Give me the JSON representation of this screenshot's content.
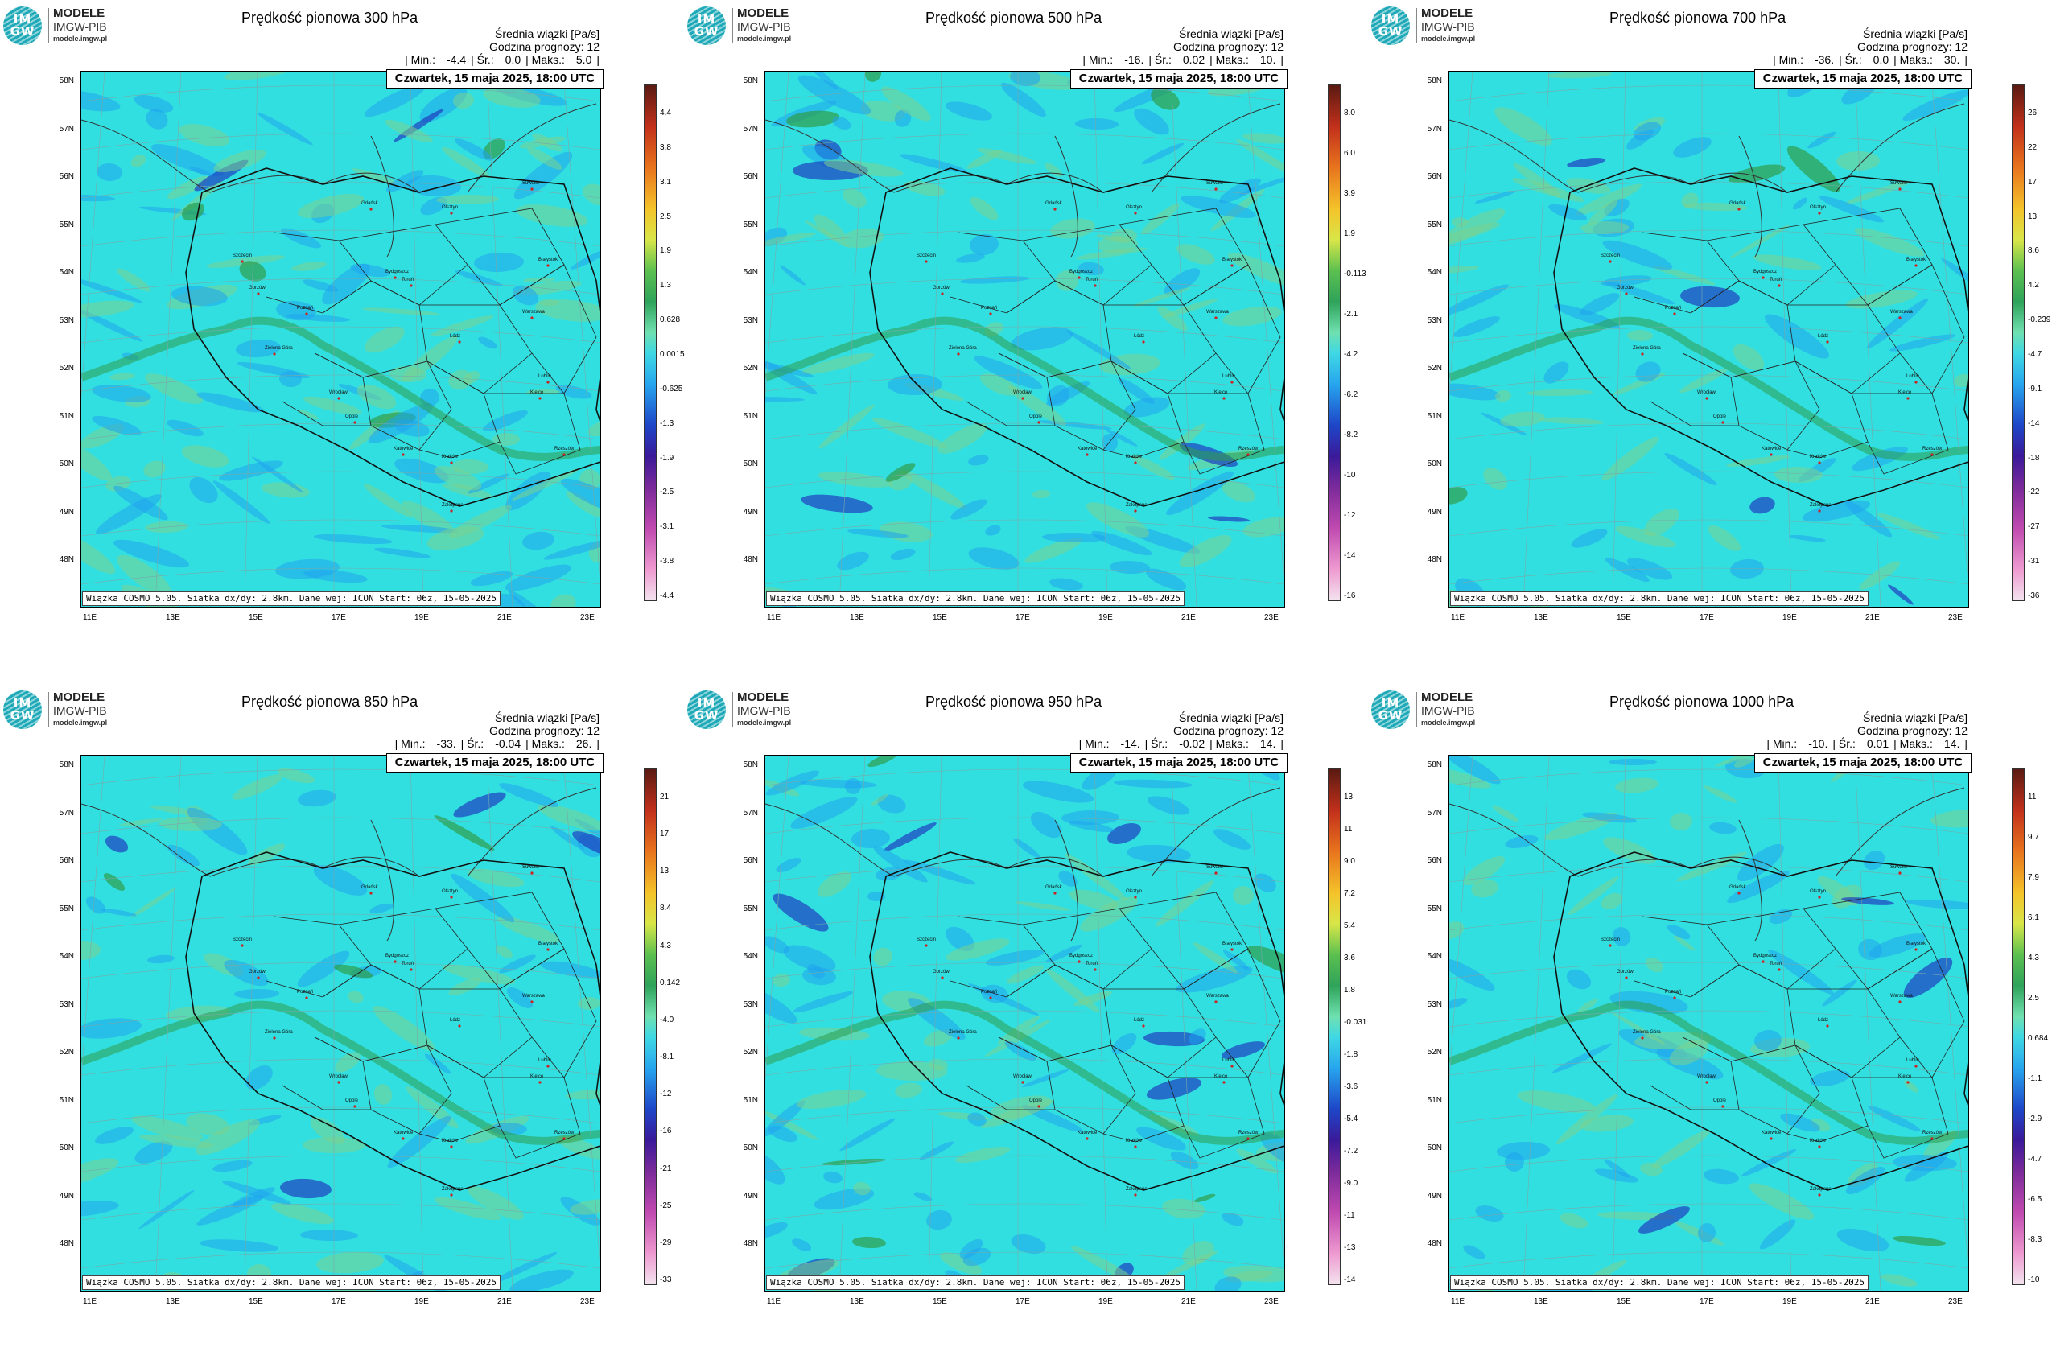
{
  "panels": [
    {
      "title": "Prędkość pionowa 300 hPa",
      "cbar_ticks": [
        "4.4",
        "3.8",
        "3.1",
        "2.5",
        "1.9",
        "1.3",
        "0.628",
        "0.0015",
        "-0.625",
        "-1.3",
        "-1.9",
        "-2.5",
        "-3.1",
        "-3.8",
        "-4.4"
      ],
      "stats": {
        "min": "-4.4",
        "mean": "0.0",
        "max": "5.0"
      },
      "features": "upper"
    },
    {
      "title": "Prędkość pionowa 500 hPa",
      "cbar_ticks": [
        "8.0",
        "6.0",
        "3.9",
        "1.9",
        "-0.113",
        "-2.1",
        "-4.2",
        "-6.2",
        "-8.2",
        "-10",
        "-12",
        "-14",
        "-16"
      ],
      "stats": {
        "min": "-16.",
        "mean": "0.02",
        "max": "10."
      },
      "features": "mid"
    },
    {
      "title": "Prędkość pionowa 700 hPa",
      "cbar_ticks": [
        "26",
        "22",
        "17",
        "13",
        "8.6",
        "4.2",
        "-0.239",
        "-4.7",
        "-9.1",
        "-14",
        "-18",
        "-22",
        "-27",
        "-31",
        "-36"
      ],
      "stats": {
        "min": "-36.",
        "mean": "0.0",
        "max": "30."
      },
      "features": "low"
    },
    {
      "title": "Prędkość pionowa 850 hPa",
      "cbar_ticks": [
        "21",
        "17",
        "13",
        "8.4",
        "4.3",
        "0.142",
        "-4.0",
        "-8.1",
        "-12",
        "-16",
        "-21",
        "-25",
        "-29",
        "-33"
      ],
      "stats": {
        "min": "-33.",
        "mean": "-0.04",
        "max": "26."
      },
      "features": "low"
    },
    {
      "title": "Prędkość pionowa 950 hPa",
      "cbar_ticks": [
        "13",
        "11",
        "9.0",
        "7.2",
        "5.4",
        "3.6",
        "1.8",
        "-0.031",
        "-1.8",
        "-3.6",
        "-5.4",
        "-7.2",
        "-9.0",
        "-11",
        "-13",
        "-14"
      ],
      "stats": {
        "min": "-14.",
        "mean": "-0.02",
        "max": "14."
      },
      "features": "mid"
    },
    {
      "title": "Prędkość pionowa 1000 hPa",
      "cbar_ticks": [
        "11",
        "9.7",
        "7.9",
        "6.1",
        "4.3",
        "2.5",
        "0.684",
        "-1.1",
        "-2.9",
        "-4.7",
        "-6.5",
        "-8.3",
        "-10"
      ],
      "stats": {
        "min": "-10.",
        "mean": "0.01",
        "max": "14."
      },
      "features": "low"
    }
  ],
  "common": {
    "logo_letters_top": "IM",
    "logo_letters_bottom": "GW",
    "logo_line1": "MODELE",
    "logo_line2": "IMGW-PIB",
    "logo_line3": "modele.imgw.pl",
    "header_line1": "Średnia wiązki [Pa/s]",
    "header_line2": "Godzina prognozy: 12",
    "stats_min_label": "| Min.:",
    "stats_mean_label": "| Śr.:",
    "stats_max_label": "| Maks.:",
    "stats_end": "|",
    "date_text": "Czwartek, 15 maja 2025, 18:00 UTC",
    "footer_text": "Wiązka COSMO 5.05. Siatka dx/dy: 2.8km. Dane wej: ICON Start: 06z, 15-05-2025",
    "lat_labels": [
      "58N",
      "57N",
      "56N",
      "55N",
      "54N",
      "53N",
      "52N",
      "51N",
      "50N",
      "49N",
      "48N"
    ],
    "lon_labels": [
      "11E",
      "13E",
      "15E",
      "17E",
      "19E",
      "21E",
      "23E"
    ],
    "cities": [
      "Gdańsk",
      "Olsztyn",
      "Suwałki",
      "Białystok",
      "Szczecin",
      "Gorzów",
      "Bydgoszcz",
      "Toruń",
      "Warszawa",
      "Poznań",
      "Łódź",
      "Zielona Góra",
      "Lublin",
      "Wrocław",
      "Kielce",
      "Opole",
      "Katowice",
      "Kraków",
      "Rzeszów",
      "Zakopane"
    ],
    "colors": {
      "field_base": "#32dfe0",
      "field_neg": "#1fa3ee",
      "field_pos": "#7cd28e",
      "field_strong_neg": "#1d3fc0",
      "field_strong_pos": "#2e9d4c"
    }
  }
}
